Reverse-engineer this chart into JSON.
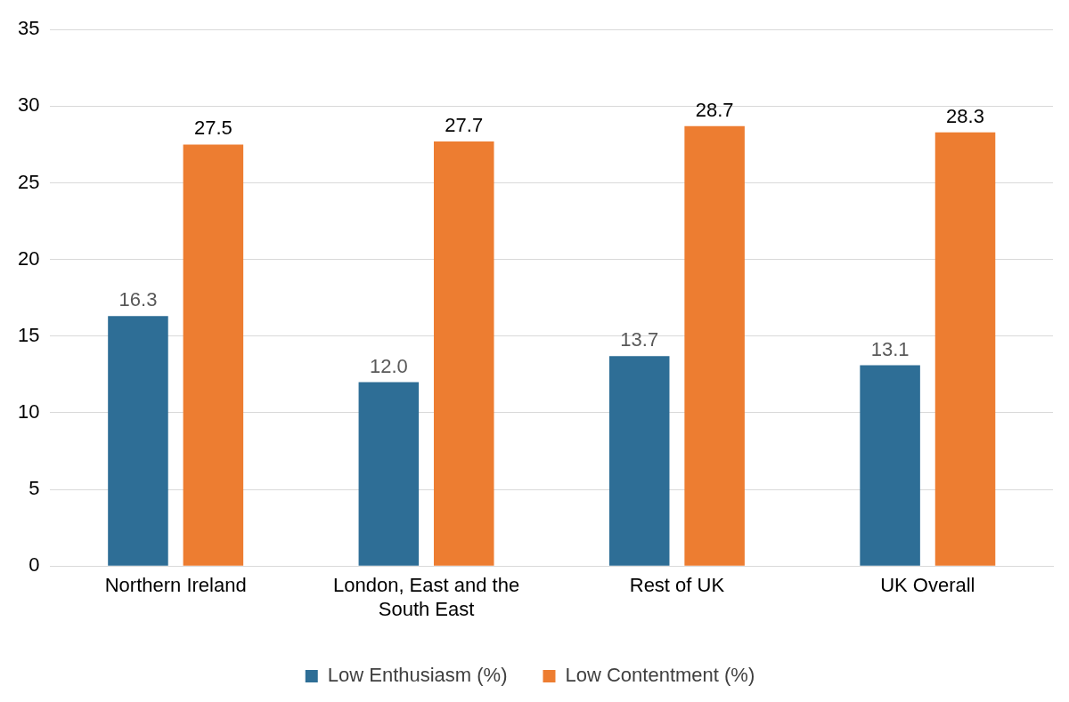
{
  "chart_data": {
    "type": "bar",
    "categories": [
      "Northern Ireland",
      "London, East and the South East",
      "Rest of UK",
      "UK Overall"
    ],
    "series": [
      {
        "name": "Low Enthusiasm (%)",
        "color": "#2e6e96",
        "values": [
          16.3,
          12.0,
          13.7,
          13.1
        ],
        "value_labels": [
          "16.3",
          "12.0",
          "13.7",
          "13.1"
        ]
      },
      {
        "name": "Low Contentment (%)",
        "color": "#ed7d31",
        "values": [
          27.5,
          27.7,
          28.7,
          28.3
        ],
        "value_labels": [
          "27.5",
          "27.7",
          "28.7",
          "28.3"
        ]
      }
    ],
    "ylim": [
      0,
      35
    ],
    "yticks": [
      0,
      5,
      10,
      15,
      20,
      25,
      30,
      35
    ],
    "grid": "y",
    "legend": "bottom"
  }
}
